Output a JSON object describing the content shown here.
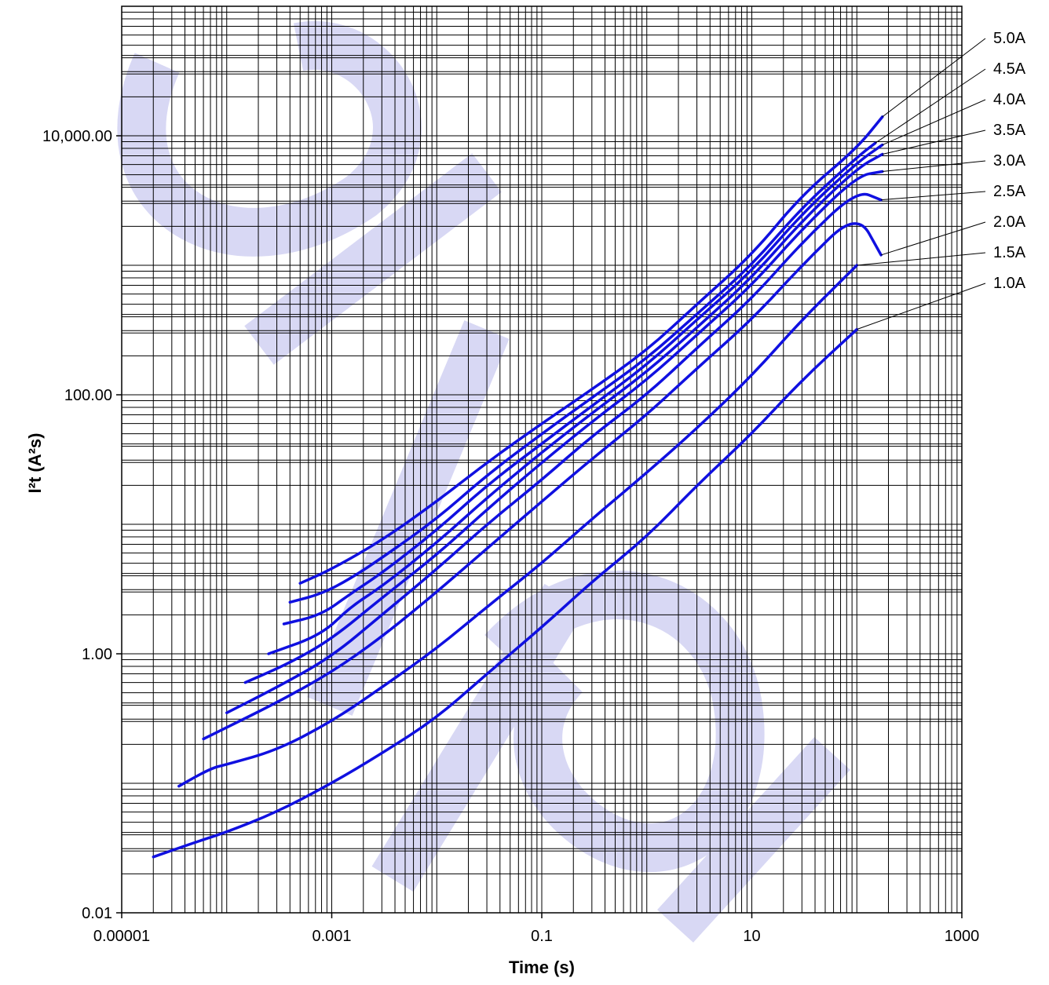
{
  "colors": {
    "series": "#1010e0",
    "grid": "#000000",
    "watermark": "#d8d8f4"
  },
  "chart_data": {
    "type": "line",
    "title": "",
    "xlabel": "Time (s)",
    "ylabel": "I²t (A²s)",
    "x_scale": "log",
    "y_scale": "log",
    "xlim": [
      1e-05,
      1000
    ],
    "ylim": [
      0.01,
      100000
    ],
    "grid": true,
    "legend": "right labels with leader lines",
    "x_ticks": [
      {
        "value": 1e-05,
        "label": "0.00001"
      },
      {
        "value": 0.001,
        "label": "0.001"
      },
      {
        "value": 0.1,
        "label": "0.1"
      },
      {
        "value": 10,
        "label": "10"
      },
      {
        "value": 1000,
        "label": "1000"
      }
    ],
    "y_ticks": [
      {
        "value": 0.01,
        "label": "0.01"
      },
      {
        "value": 1,
        "label": "1.00"
      },
      {
        "value": 100,
        "label": "100.00"
      },
      {
        "value": 10000,
        "label": "10,000.00"
      }
    ],
    "series": [
      {
        "name": "5.0A",
        "x": [
          0.0005,
          0.001,
          0.003,
          0.01,
          0.03,
          0.1,
          0.3,
          1,
          3,
          10,
          30,
          100,
          175
        ],
        "y": [
          3.5,
          4.5,
          7.5,
          15,
          30,
          60,
          110,
          220,
          500,
          1200,
          3500,
          8000,
          14000
        ]
      },
      {
        "name": "4.5A",
        "x": [
          0.0004,
          0.0008,
          0.0015,
          0.003,
          0.01,
          0.03,
          0.1,
          0.3,
          1,
          3,
          10,
          30,
          100,
          150
        ],
        "y": [
          2.5,
          2.9,
          3.8,
          5.5,
          11,
          24,
          50,
          95,
          190,
          420,
          1000,
          2800,
          6800,
          8800
        ]
      },
      {
        "name": "4.0A",
        "x": [
          0.00035,
          0.0008,
          0.0015,
          0.003,
          0.01,
          0.03,
          0.1,
          0.3,
          1,
          3,
          10,
          30,
          100,
          175
        ],
        "y": [
          1.7,
          2.0,
          2.9,
          4.2,
          9,
          20,
          42,
          82,
          170,
          380,
          900,
          2500,
          6200,
          8500
        ]
      },
      {
        "name": "3.5A",
        "x": [
          0.00025,
          0.0008,
          0.0015,
          0.003,
          0.01,
          0.03,
          0.1,
          0.3,
          1,
          3,
          10,
          30,
          100,
          175
        ],
        "y": [
          1.0,
          1.4,
          2.3,
          3.3,
          7.2,
          16,
          36,
          72,
          150,
          330,
          800,
          2200,
          5600,
          7200
        ]
      },
      {
        "name": "3.0A",
        "x": [
          0.00015,
          0.0004,
          0.001,
          0.003,
          0.01,
          0.03,
          0.1,
          0.3,
          1,
          3,
          10,
          30,
          100,
          175
        ],
        "y": [
          0.6,
          0.85,
          1.3,
          2.7,
          5.8,
          13,
          30,
          62,
          130,
          290,
          700,
          1900,
          4900,
          5300
        ]
      },
      {
        "name": "2.5A",
        "x": [
          0.0001,
          0.0003,
          0.001,
          0.003,
          0.01,
          0.03,
          0.1,
          0.3,
          1,
          3,
          10,
          30,
          100,
          170
        ],
        "y": [
          0.35,
          0.55,
          0.95,
          2.0,
          4.5,
          10,
          22,
          48,
          100,
          230,
          550,
          1500,
          3800,
          3200
        ]
      },
      {
        "name": "2.0A",
        "x": [
          6e-05,
          0.0001,
          0.0003,
          0.001,
          0.003,
          0.01,
          0.03,
          0.1,
          0.3,
          1,
          3,
          10,
          30,
          100,
          170
        ],
        "y": [
          0.22,
          0.27,
          0.42,
          0.72,
          1.35,
          3.0,
          6.5,
          15,
          32,
          70,
          160,
          380,
          1000,
          2600,
          1200
        ]
      },
      {
        "name": "1.5A",
        "x": [
          3.5e-05,
          7e-05,
          0.0001,
          0.0003,
          0.001,
          0.003,
          0.01,
          0.03,
          0.1,
          0.3,
          1,
          3,
          10,
          30,
          100
        ],
        "y": [
          0.095,
          0.13,
          0.14,
          0.18,
          0.3,
          0.55,
          1.1,
          2.3,
          5.0,
          11,
          25,
          55,
          140,
          380,
          1000
        ]
      },
      {
        "name": "1.0A",
        "x": [
          2e-05,
          5e-05,
          0.0001,
          0.0003,
          0.001,
          0.003,
          0.01,
          0.03,
          0.1,
          0.3,
          1,
          3,
          10,
          30,
          100
        ],
        "y": [
          0.027,
          0.035,
          0.042,
          0.06,
          0.1,
          0.17,
          0.32,
          0.7,
          1.6,
          3.6,
          8,
          20,
          50,
          130,
          320
        ]
      }
    ]
  }
}
